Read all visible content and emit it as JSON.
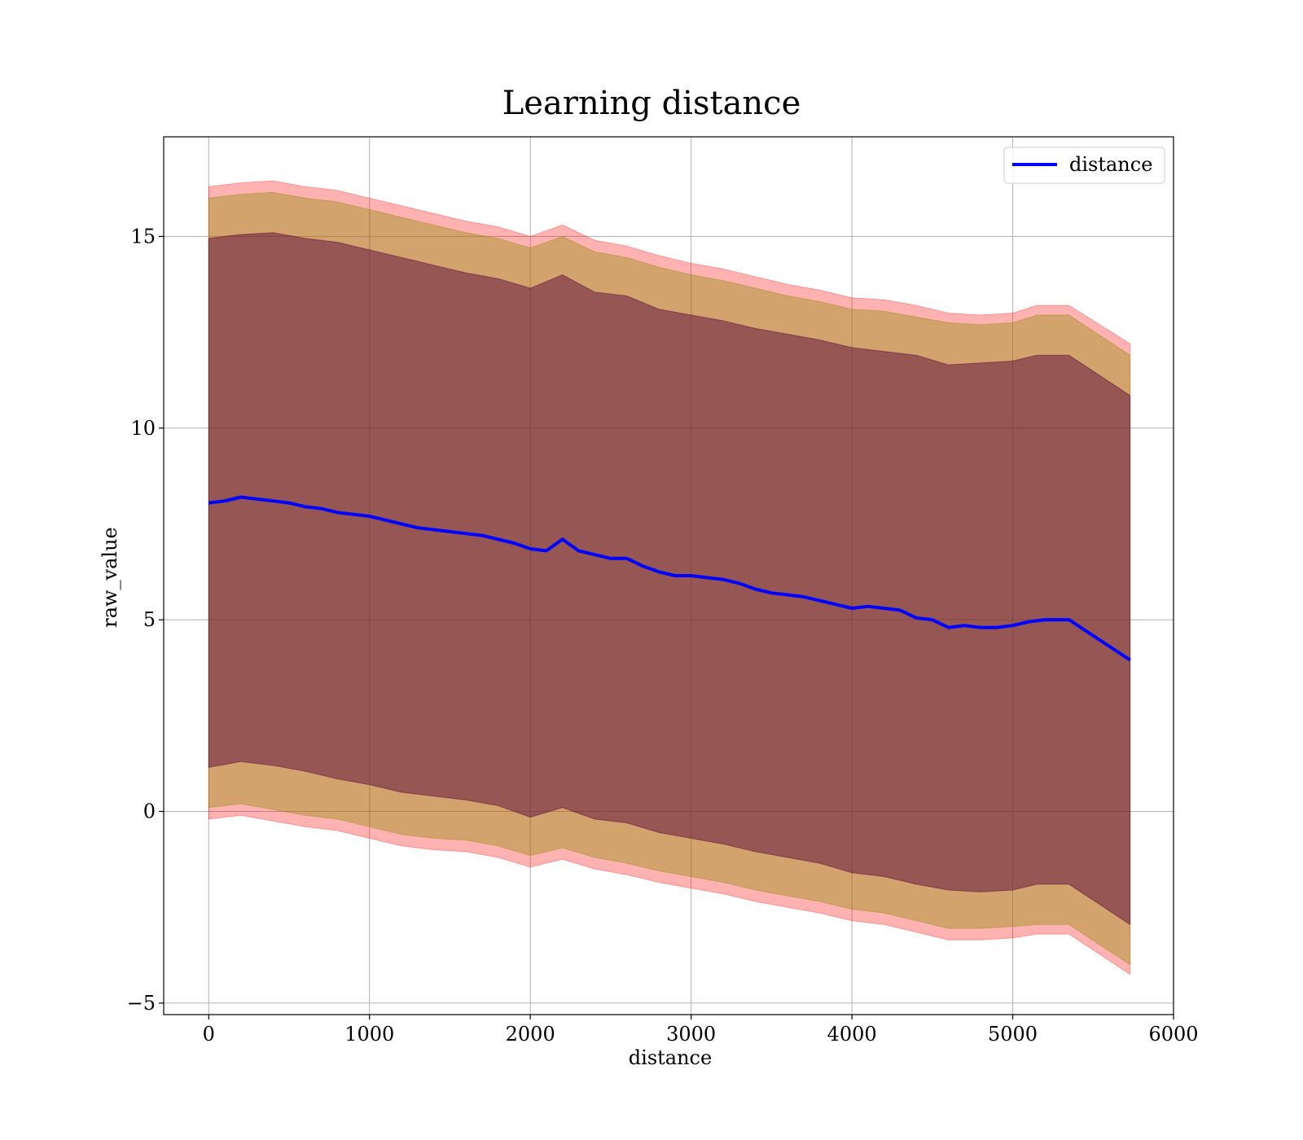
{
  "chart_data": {
    "type": "line",
    "title": "Learning distance",
    "xlabel": "distance",
    "ylabel": "raw_value",
    "xlim": [
      -280,
      6000
    ],
    "ylim": [
      -5.3,
      17.6
    ],
    "xticks": [
      0,
      1000,
      2000,
      3000,
      4000,
      5000,
      6000
    ],
    "yticks": [
      -5,
      0,
      5,
      10,
      15
    ],
    "grid": true,
    "legend": {
      "position": "upper right",
      "entries": [
        "distance"
      ]
    },
    "colors": {
      "line": "#0000ff",
      "outer_band": "#ff0000",
      "middle_band": "#8b8b00",
      "inner_band": "#5a0a3a"
    },
    "series": [
      {
        "name": "distance",
        "x": [
          0,
          100,
          200,
          300,
          400,
          500,
          600,
          700,
          800,
          900,
          1000,
          1100,
          1200,
          1300,
          1400,
          1500,
          1600,
          1700,
          1800,
          1900,
          2000,
          2100,
          2200,
          2300,
          2400,
          2500,
          2600,
          2700,
          2800,
          2900,
          3000,
          3100,
          3200,
          3300,
          3400,
          3500,
          3600,
          3700,
          3800,
          3900,
          4000,
          4100,
          4200,
          4300,
          4400,
          4500,
          4600,
          4700,
          4800,
          4900,
          5000,
          5100,
          5200,
          5300,
          5350,
          5730
        ],
        "y": [
          8.05,
          8.1,
          8.2,
          8.15,
          8.1,
          8.05,
          7.95,
          7.9,
          7.8,
          7.75,
          7.7,
          7.6,
          7.5,
          7.4,
          7.35,
          7.3,
          7.25,
          7.2,
          7.1,
          7.0,
          6.85,
          6.8,
          7.1,
          6.8,
          6.7,
          6.6,
          6.6,
          6.4,
          6.25,
          6.15,
          6.15,
          6.1,
          6.05,
          5.95,
          5.8,
          5.7,
          5.65,
          5.6,
          5.5,
          5.4,
          5.3,
          5.35,
          5.3,
          5.25,
          5.05,
          5.0,
          4.8,
          4.85,
          4.8,
          4.8,
          4.85,
          4.95,
          5.0,
          5.0,
          5.0,
          3.95
        ]
      }
    ],
    "bands": [
      {
        "role": "outer",
        "x": [
          0,
          200,
          400,
          600,
          800,
          1000,
          1200,
          1400,
          1600,
          1800,
          2000,
          2200,
          2400,
          2600,
          2800,
          3000,
          3200,
          3400,
          3600,
          3800,
          4000,
          4200,
          4400,
          4600,
          4800,
          5000,
          5150,
          5350,
          5730
        ],
        "upper": [
          16.3,
          16.4,
          16.45,
          16.3,
          16.2,
          16.0,
          15.8,
          15.6,
          15.4,
          15.25,
          15.0,
          15.3,
          14.9,
          14.75,
          14.5,
          14.3,
          14.15,
          13.95,
          13.75,
          13.6,
          13.4,
          13.35,
          13.2,
          13.0,
          12.95,
          13.0,
          13.2,
          13.2,
          12.2
        ],
        "lower": [
          -0.2,
          -0.1,
          -0.25,
          -0.4,
          -0.5,
          -0.7,
          -0.9,
          -1.0,
          -1.05,
          -1.2,
          -1.45,
          -1.25,
          -1.5,
          -1.65,
          -1.85,
          -2.0,
          -2.15,
          -2.35,
          -2.5,
          -2.65,
          -2.85,
          -2.95,
          -3.15,
          -3.35,
          -3.35,
          -3.3,
          -3.2,
          -3.2,
          -4.25
        ]
      },
      {
        "role": "middle",
        "x": [
          0,
          200,
          400,
          600,
          800,
          1000,
          1200,
          1400,
          1600,
          1800,
          2000,
          2200,
          2400,
          2600,
          2800,
          3000,
          3200,
          3400,
          3600,
          3800,
          4000,
          4200,
          4400,
          4600,
          4800,
          5000,
          5150,
          5350,
          5730
        ],
        "upper": [
          16.0,
          16.1,
          16.15,
          16.0,
          15.9,
          15.7,
          15.5,
          15.3,
          15.1,
          14.95,
          14.7,
          15.0,
          14.6,
          14.45,
          14.2,
          14.0,
          13.85,
          13.65,
          13.45,
          13.3,
          13.1,
          13.05,
          12.9,
          12.75,
          12.7,
          12.75,
          12.95,
          12.95,
          11.9
        ],
        "lower": [
          0.1,
          0.2,
          0.05,
          -0.1,
          -0.2,
          -0.4,
          -0.6,
          -0.7,
          -0.75,
          -0.9,
          -1.15,
          -0.95,
          -1.2,
          -1.35,
          -1.55,
          -1.7,
          -1.85,
          -2.05,
          -2.2,
          -2.35,
          -2.55,
          -2.65,
          -2.85,
          -3.05,
          -3.05,
          -3.0,
          -2.95,
          -2.95,
          -4.0
        ]
      },
      {
        "role": "inner",
        "x": [
          0,
          200,
          400,
          600,
          800,
          1000,
          1200,
          1400,
          1600,
          1800,
          2000,
          2200,
          2400,
          2600,
          2800,
          3000,
          3200,
          3400,
          3600,
          3800,
          4000,
          4200,
          4400,
          4600,
          4800,
          5000,
          5150,
          5350,
          5730
        ],
        "upper": [
          14.95,
          15.05,
          15.1,
          14.95,
          14.85,
          14.65,
          14.45,
          14.25,
          14.05,
          13.9,
          13.65,
          14.0,
          13.55,
          13.45,
          13.1,
          12.95,
          12.8,
          12.6,
          12.45,
          12.3,
          12.1,
          12.0,
          11.9,
          11.65,
          11.7,
          11.75,
          11.9,
          11.9,
          10.85
        ],
        "lower": [
          1.15,
          1.3,
          1.2,
          1.05,
          0.85,
          0.7,
          0.5,
          0.4,
          0.3,
          0.15,
          -0.15,
          0.1,
          -0.2,
          -0.3,
          -0.55,
          -0.7,
          -0.85,
          -1.05,
          -1.2,
          -1.35,
          -1.6,
          -1.7,
          -1.9,
          -2.05,
          -2.1,
          -2.05,
          -1.9,
          -1.9,
          -2.95
        ]
      }
    ]
  }
}
